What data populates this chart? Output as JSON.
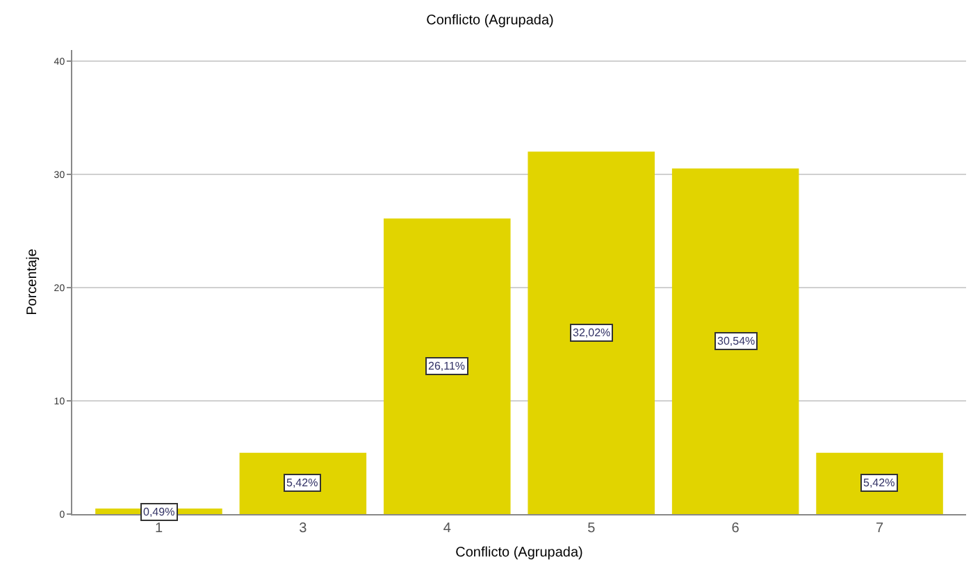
{
  "chart_data": {
    "type": "bar",
    "title": "Conflicto (Agrupada)",
    "xlabel": "Conflicto (Agrupada)",
    "ylabel": "Porcentaje",
    "categories": [
      "1",
      "3",
      "4",
      "5",
      "6",
      "7"
    ],
    "values": [
      0.49,
      5.42,
      26.11,
      32.02,
      30.54,
      5.42
    ],
    "value_labels": [
      "0,49%",
      "5,42%",
      "26,11%",
      "32,02%",
      "30,54%",
      "5,42%"
    ],
    "color": "#e1d400",
    "ylim": [
      0,
      41
    ],
    "yticks": [
      0,
      10,
      20,
      30,
      40
    ],
    "grid": "y",
    "legend": false
  }
}
